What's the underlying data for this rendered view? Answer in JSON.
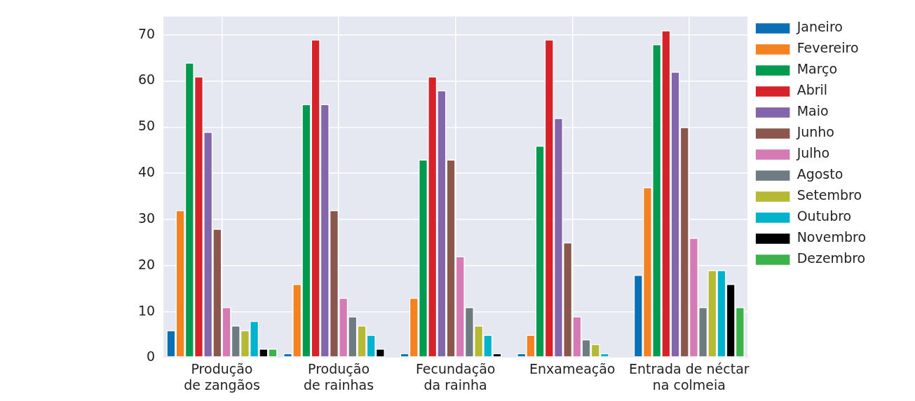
{
  "chart_data": {
    "type": "bar",
    "categories": [
      "Produção\nde zangãos",
      "Produção\nde rainhas",
      "Fecundação\nda rainha",
      "Enxameação",
      "Entrada de néctar\nna colmeia"
    ],
    "series": [
      {
        "name": "Janeiro",
        "color": "#0b6fb5",
        "values": [
          6,
          1,
          1,
          1,
          18
        ]
      },
      {
        "name": "Fevereiro",
        "color": "#f58220",
        "values": [
          32,
          16,
          13,
          5,
          37
        ]
      },
      {
        "name": "Março",
        "color": "#009b4e",
        "values": [
          64,
          55,
          43,
          46,
          68
        ]
      },
      {
        "name": "Abril",
        "color": "#d62228",
        "values": [
          61,
          69,
          61,
          69,
          71
        ]
      },
      {
        "name": "Maio",
        "color": "#8265ab",
        "values": [
          49,
          55,
          58,
          52,
          62
        ]
      },
      {
        "name": "Junho",
        "color": "#8b564c",
        "values": [
          28,
          32,
          43,
          25,
          50
        ]
      },
      {
        "name": "Julho",
        "color": "#d57ab5",
        "values": [
          11,
          13,
          22,
          9,
          26
        ]
      },
      {
        "name": "Agosto",
        "color": "#6e7b80",
        "values": [
          7,
          9,
          11,
          4,
          11
        ]
      },
      {
        "name": "Setembro",
        "color": "#b5b934",
        "values": [
          6,
          7,
          7,
          3,
          19
        ]
      },
      {
        "name": "Outubro",
        "color": "#00b2cc",
        "values": [
          8,
          5,
          5,
          1,
          19
        ]
      },
      {
        "name": "Novembro",
        "color": "#000000",
        "values": [
          2,
          2,
          1,
          0,
          16
        ]
      },
      {
        "name": "Dezembro",
        "color": "#3cb24a",
        "values": [
          2,
          0,
          0,
          0,
          11
        ]
      }
    ],
    "ylim": [
      0,
      74
    ],
    "yticks": [
      0,
      10,
      20,
      30,
      40,
      50,
      60,
      70
    ],
    "grid": true,
    "legend": "top right"
  }
}
